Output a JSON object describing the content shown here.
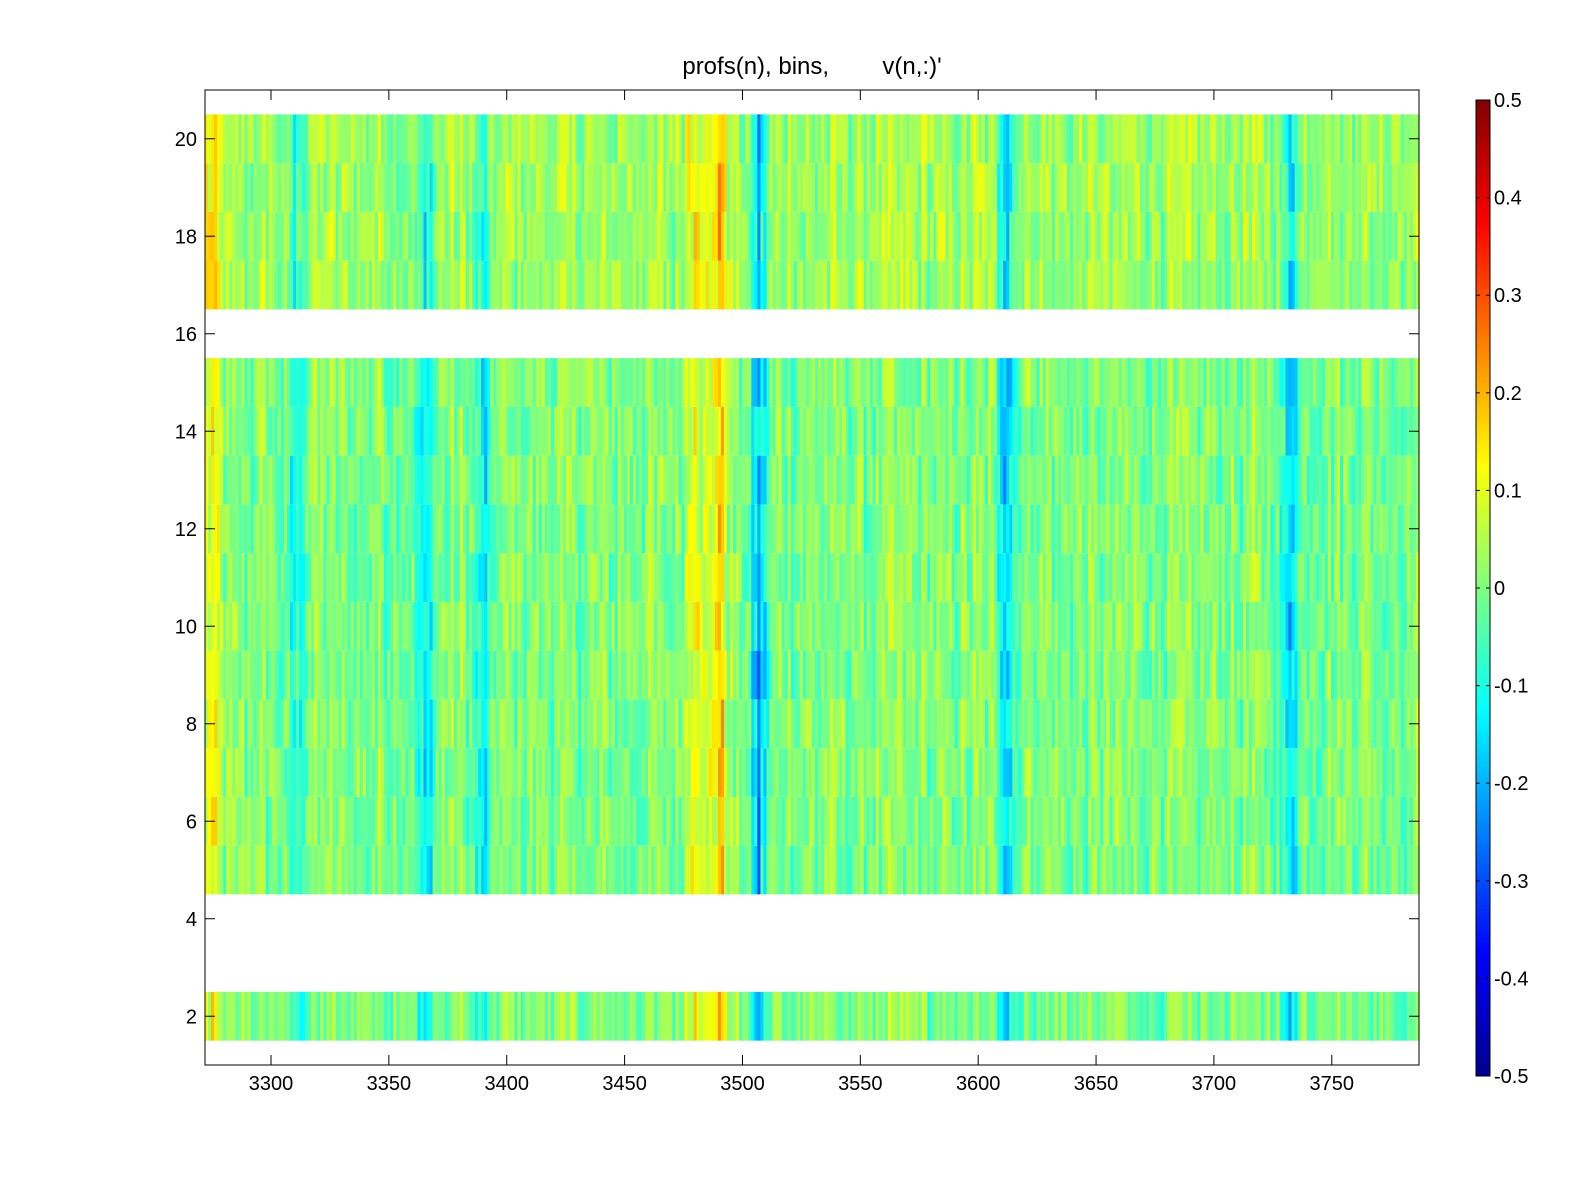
{
  "chart_data": {
    "type": "heatmap",
    "title": "profs(n), bins,        v(n,:)'",
    "xlabel": "",
    "ylabel": "",
    "xlim": [
      3272,
      3787
    ],
    "ylim": [
      1,
      21
    ],
    "x_ticks": [
      3300,
      3350,
      3400,
      3450,
      3500,
      3550,
      3600,
      3650,
      3700,
      3750
    ],
    "y_ticks": [
      2,
      4,
      6,
      8,
      10,
      12,
      14,
      16,
      18,
      20
    ],
    "rows": [
      2,
      5,
      6,
      7,
      8,
      9,
      10,
      11,
      12,
      13,
      14,
      15,
      17,
      18,
      19,
      20
    ],
    "missing_rows": [
      1,
      3,
      4,
      16
    ],
    "colormap": "jet",
    "clim": [
      -0.5,
      0.5
    ],
    "colorbar_ticks": [
      0.5,
      0.4,
      0.3,
      0.2,
      0.1,
      0,
      -0.1,
      -0.2,
      -0.3,
      -0.4,
      -0.5
    ],
    "features": [
      {
        "x": 3480,
        "value": 0.2
      },
      {
        "x": 3490,
        "value": 0.22
      },
      {
        "x": 3275,
        "value": 0.15
      },
      {
        "x": 3507,
        "value": -0.25
      },
      {
        "x": 3612,
        "value": -0.2
      },
      {
        "x": 3390,
        "value": -0.2
      },
      {
        "x": 3365,
        "value": -0.2
      },
      {
        "x": 3732,
        "value": -0.2
      },
      {
        "x": 3310,
        "value": -0.15
      }
    ],
    "grid": false,
    "colors": {
      "jet": [
        "#00008f",
        "#0000ff",
        "#00ffff",
        "#ffff00",
        "#ff0000",
        "#800000"
      ]
    }
  }
}
